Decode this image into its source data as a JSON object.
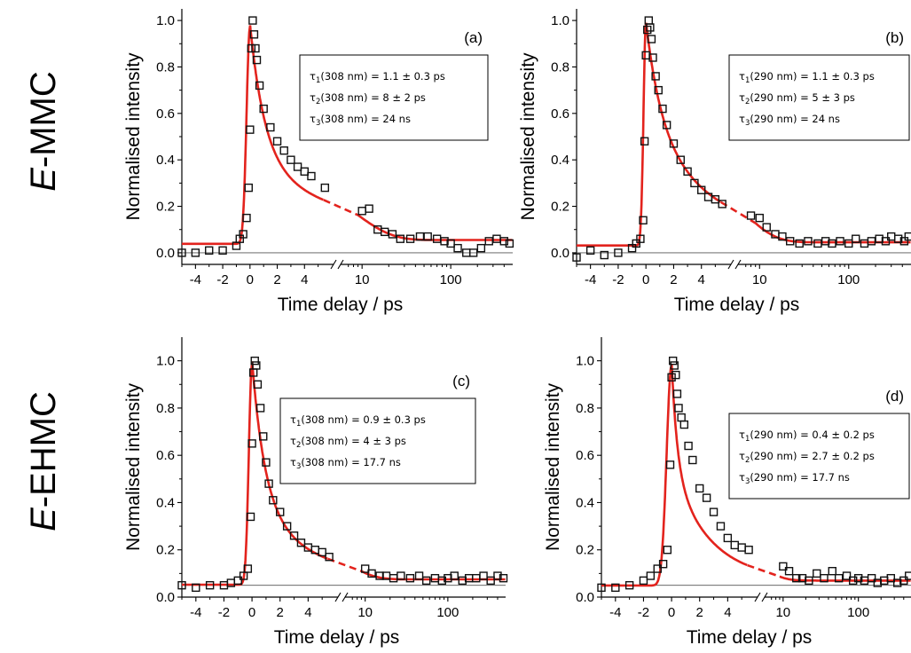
{
  "figure": {
    "row_labels": [
      {
        "italic": "E",
        "rest": "-MMC"
      },
      {
        "italic": "E",
        "rest": "-EHMC"
      }
    ]
  },
  "chart_data": [
    {
      "type": "scatter",
      "panel": "(a)",
      "xlabel": "Time delay / ps",
      "ylabel": "Normalised intensity",
      "ylim": [
        -0.05,
        1.05
      ],
      "yticks": [
        "0.0",
        "0.2",
        "0.4",
        "0.6",
        "0.8",
        "1.0"
      ],
      "xticks": [
        "-4",
        "-2",
        "0",
        "2",
        "4",
        "10",
        "100"
      ],
      "x_axis": "piecewise: linear from -5 to 6 ps, axis break, logarithmic from 6 to 500 ps",
      "baseline": 0.0,
      "fit": {
        "A": 0.6,
        "tau1": 1.1,
        "B": 0.33,
        "tau2": 8,
        "C": 0.055,
        "rise_sigma": 0.5
      },
      "legend": [
        {
          "sym": "τ",
          "sub": "1",
          "text": "(308 nm) = 1.1 ± 0.3 ps"
        },
        {
          "sym": "τ",
          "sub": "2",
          "text": "(308 nm) = 8 ± 2 ps"
        },
        {
          "sym": "τ",
          "sub": "3",
          "text": "(308 nm) = 24 ns"
        }
      ],
      "series": [
        {
          "name": "",
          "style": "open square markers",
          "points": [
            [
              -5,
              0.0
            ],
            [
              -4,
              0.0
            ],
            [
              -3,
              0.01
            ],
            [
              -2,
              0.01
            ],
            [
              -1,
              0.03
            ],
            [
              -0.75,
              0.06
            ],
            [
              -0.5,
              0.08
            ],
            [
              -0.25,
              0.15
            ],
            [
              -0.1,
              0.28
            ],
            [
              0,
              0.53
            ],
            [
              0.1,
              0.88
            ],
            [
              0.2,
              1.0
            ],
            [
              0.3,
              0.94
            ],
            [
              0.4,
              0.88
            ],
            [
              0.5,
              0.83
            ],
            [
              0.7,
              0.72
            ],
            [
              1,
              0.62
            ],
            [
              1.5,
              0.54
            ],
            [
              2,
              0.48
            ],
            [
              2.5,
              0.44
            ],
            [
              3,
              0.4
            ],
            [
              3.5,
              0.37
            ],
            [
              4,
              0.35
            ],
            [
              4.5,
              0.33
            ],
            [
              5.5,
              0.28
            ],
            [
              10,
              0.18
            ],
            [
              12,
              0.19
            ],
            [
              15,
              0.1
            ],
            [
              18,
              0.09
            ],
            [
              22,
              0.08
            ],
            [
              27,
              0.06
            ],
            [
              35,
              0.06
            ],
            [
              45,
              0.07
            ],
            [
              55,
              0.07
            ],
            [
              70,
              0.06
            ],
            [
              85,
              0.05
            ],
            [
              100,
              0.04
            ],
            [
              120,
              0.02
            ],
            [
              150,
              0.0
            ],
            [
              180,
              0.0
            ],
            [
              220,
              0.02
            ],
            [
              270,
              0.05
            ],
            [
              330,
              0.06
            ],
            [
              400,
              0.05
            ],
            [
              460,
              0.04
            ]
          ]
        },
        {
          "name": "",
          "style": "red fit line",
          "points": "computed from fit parameters"
        }
      ]
    },
    {
      "type": "scatter",
      "panel": "(b)",
      "xlabel": "Time delay / ps",
      "ylabel": "Normalised intensity",
      "ylim": [
        -0.05,
        1.05
      ],
      "yticks": [
        "0.0",
        "0.2",
        "0.4",
        "0.6",
        "0.8",
        "1.0"
      ],
      "xticks": [
        "-4",
        "-2",
        "0",
        "2",
        "4",
        "10",
        "100"
      ],
      "x_axis": "piecewise: linear from -5 to 6 ps, axis break, logarithmic from 6 to 500 ps",
      "baseline": 0.0,
      "fit": {
        "A": 0.45,
        "tau1": 1.1,
        "B": 0.5,
        "tau2": 5,
        "C": 0.045,
        "rise_sigma": 0.35
      },
      "legend": [
        {
          "sym": "τ",
          "sub": "1",
          "text": "(290 nm) = 1.1 ± 0.3 ps"
        },
        {
          "sym": "τ",
          "sub": "2",
          "text": "(290 nm) = 5 ± 3 ps"
        },
        {
          "sym": "τ",
          "sub": "3",
          "text": "(290 nm) = 24 ns"
        }
      ],
      "series": [
        {
          "name": "",
          "style": "open square markers",
          "points": [
            [
              -5,
              -0.02
            ],
            [
              -4,
              0.01
            ],
            [
              -3,
              -0.01
            ],
            [
              -2,
              0.0
            ],
            [
              -1,
              0.02
            ],
            [
              -0.7,
              0.04
            ],
            [
              -0.4,
              0.06
            ],
            [
              -0.2,
              0.14
            ],
            [
              -0.1,
              0.48
            ],
            [
              0,
              0.85
            ],
            [
              0.1,
              0.96
            ],
            [
              0.2,
              1.0
            ],
            [
              0.3,
              0.97
            ],
            [
              0.4,
              0.92
            ],
            [
              0.5,
              0.84
            ],
            [
              0.7,
              0.76
            ],
            [
              0.9,
              0.7
            ],
            [
              1.2,
              0.62
            ],
            [
              1.5,
              0.55
            ],
            [
              2,
              0.47
            ],
            [
              2.5,
              0.4
            ],
            [
              3,
              0.35
            ],
            [
              3.5,
              0.3
            ],
            [
              4,
              0.27
            ],
            [
              4.5,
              0.24
            ],
            [
              5,
              0.23
            ],
            [
              5.5,
              0.21
            ],
            [
              8,
              0.16
            ],
            [
              10,
              0.15
            ],
            [
              12,
              0.11
            ],
            [
              15,
              0.08
            ],
            [
              18,
              0.07
            ],
            [
              22,
              0.05
            ],
            [
              28,
              0.04
            ],
            [
              35,
              0.05
            ],
            [
              45,
              0.04
            ],
            [
              55,
              0.05
            ],
            [
              65,
              0.04
            ],
            [
              80,
              0.05
            ],
            [
              100,
              0.04
            ],
            [
              120,
              0.06
            ],
            [
              150,
              0.04
            ],
            [
              180,
              0.05
            ],
            [
              220,
              0.06
            ],
            [
              260,
              0.05
            ],
            [
              300,
              0.07
            ],
            [
              360,
              0.06
            ],
            [
              420,
              0.05
            ],
            [
              470,
              0.07
            ]
          ]
        },
        {
          "name": "",
          "style": "red fit line",
          "points": "computed from fit parameters"
        }
      ]
    },
    {
      "type": "scatter",
      "panel": "(c)",
      "xlabel": "Time delay / ps",
      "ylabel": "Normalised intensity",
      "ylim": [
        0.0,
        1.1
      ],
      "yticks": [
        "0.0",
        "0.2",
        "0.4",
        "0.6",
        "0.8",
        "1.0"
      ],
      "xticks": [
        "-4",
        "-2",
        "0",
        "2",
        "4",
        "10",
        "100"
      ],
      "x_axis": "piecewise: linear from -5 to 6 ps, axis break, logarithmic from 6 to 500 ps",
      "baseline": 0.05,
      "fit": {
        "A": 0.6,
        "tau1": 0.9,
        "B": 0.33,
        "tau2": 4,
        "C": 0.075,
        "rise_sigma": 0.45
      },
      "legend": [
        {
          "sym": "τ",
          "sub": "1",
          "text": "(308 nm) = 0.9 ± 0.3 ps"
        },
        {
          "sym": "τ",
          "sub": "2",
          "text": "(308 nm) = 4 ± 3 ps"
        },
        {
          "sym": "τ",
          "sub": "3",
          "text": "(308 nm) = 17.7 ns"
        }
      ],
      "series": [
        {
          "name": "",
          "style": "open square markers",
          "points": [
            [
              -5,
              0.05
            ],
            [
              -4,
              0.04
            ],
            [
              -3,
              0.05
            ],
            [
              -2,
              0.05
            ],
            [
              -1.5,
              0.06
            ],
            [
              -1,
              0.07
            ],
            [
              -0.6,
              0.09
            ],
            [
              -0.3,
              0.12
            ],
            [
              -0.1,
              0.34
            ],
            [
              0,
              0.65
            ],
            [
              0.1,
              0.95
            ],
            [
              0.2,
              1.0
            ],
            [
              0.3,
              0.98
            ],
            [
              0.4,
              0.9
            ],
            [
              0.6,
              0.8
            ],
            [
              0.8,
              0.68
            ],
            [
              1,
              0.57
            ],
            [
              1.2,
              0.48
            ],
            [
              1.5,
              0.41
            ],
            [
              2,
              0.36
            ],
            [
              2.5,
              0.3
            ],
            [
              3,
              0.26
            ],
            [
              3.5,
              0.23
            ],
            [
              4,
              0.21
            ],
            [
              4.5,
              0.2
            ],
            [
              5,
              0.19
            ],
            [
              5.5,
              0.17
            ],
            [
              10,
              0.12
            ],
            [
              12,
              0.1
            ],
            [
              15,
              0.09
            ],
            [
              18,
              0.09
            ],
            [
              22,
              0.08
            ],
            [
              27,
              0.09
            ],
            [
              35,
              0.08
            ],
            [
              45,
              0.09
            ],
            [
              55,
              0.07
            ],
            [
              70,
              0.08
            ],
            [
              85,
              0.07
            ],
            [
              100,
              0.08
            ],
            [
              120,
              0.09
            ],
            [
              150,
              0.07
            ],
            [
              180,
              0.08
            ],
            [
              220,
              0.08
            ],
            [
              270,
              0.09
            ],
            [
              330,
              0.07
            ],
            [
              400,
              0.09
            ],
            [
              470,
              0.08
            ]
          ]
        },
        {
          "name": "",
          "style": "red fit line",
          "points": "computed from fit parameters"
        }
      ]
    },
    {
      "type": "scatter",
      "panel": "(d)",
      "xlabel": "Time delay / ps",
      "ylabel": "Normalised intensity",
      "ylim": [
        0.0,
        1.1
      ],
      "yticks": [
        "0.0",
        "0.2",
        "0.4",
        "0.6",
        "0.8",
        "1.0"
      ],
      "xticks": [
        "-4",
        "-2",
        "0",
        "2",
        "4",
        "10",
        "100"
      ],
      "x_axis": "piecewise: linear from -5 to 6 ps, axis break, logarithmic from 6 to 500 ps",
      "baseline": 0.05,
      "fit": {
        "A": 0.45,
        "tau1": 0.4,
        "B": 0.48,
        "tau2": 2.7,
        "C": 0.07,
        "rise_sigma": 0.7
      },
      "legend": [
        {
          "sym": "τ",
          "sub": "1",
          "text": "(290 nm) = 0.4 ± 0.2 ps"
        },
        {
          "sym": "τ",
          "sub": "2",
          "text": "(290 nm) = 2.7 ± 0.2 ps"
        },
        {
          "sym": "τ",
          "sub": "3",
          "text": "(290 nm) = 17.7 ns"
        }
      ],
      "series": [
        {
          "name": "",
          "style": "open square markers",
          "points": [
            [
              -5,
              0.04
            ],
            [
              -4,
              0.04
            ],
            [
              -3,
              0.05
            ],
            [
              -2,
              0.07
            ],
            [
              -1.5,
              0.09
            ],
            [
              -1,
              0.12
            ],
            [
              -0.6,
              0.14
            ],
            [
              -0.3,
              0.2
            ],
            [
              -0.1,
              0.56
            ],
            [
              0,
              0.93
            ],
            [
              0.1,
              1.0
            ],
            [
              0.2,
              0.98
            ],
            [
              0.3,
              0.94
            ],
            [
              0.4,
              0.86
            ],
            [
              0.5,
              0.8
            ],
            [
              0.7,
              0.76
            ],
            [
              0.9,
              0.73
            ],
            [
              1.2,
              0.64
            ],
            [
              1.5,
              0.58
            ],
            [
              2,
              0.46
            ],
            [
              2.5,
              0.42
            ],
            [
              3,
              0.36
            ],
            [
              3.5,
              0.3
            ],
            [
              4,
              0.25
            ],
            [
              4.5,
              0.22
            ],
            [
              5,
              0.21
            ],
            [
              5.5,
              0.2
            ],
            [
              10,
              0.13
            ],
            [
              12,
              0.11
            ],
            [
              15,
              0.08
            ],
            [
              18,
              0.08
            ],
            [
              22,
              0.07
            ],
            [
              28,
              0.1
            ],
            [
              35,
              0.08
            ],
            [
              45,
              0.11
            ],
            [
              55,
              0.08
            ],
            [
              70,
              0.09
            ],
            [
              85,
              0.07
            ],
            [
              100,
              0.08
            ],
            [
              120,
              0.07
            ],
            [
              150,
              0.08
            ],
            [
              180,
              0.06
            ],
            [
              220,
              0.07
            ],
            [
              270,
              0.08
            ],
            [
              330,
              0.06
            ],
            [
              400,
              0.07
            ],
            [
              470,
              0.09
            ]
          ]
        },
        {
          "name": "",
          "style": "red fit line",
          "points": "computed from fit parameters"
        }
      ]
    }
  ]
}
